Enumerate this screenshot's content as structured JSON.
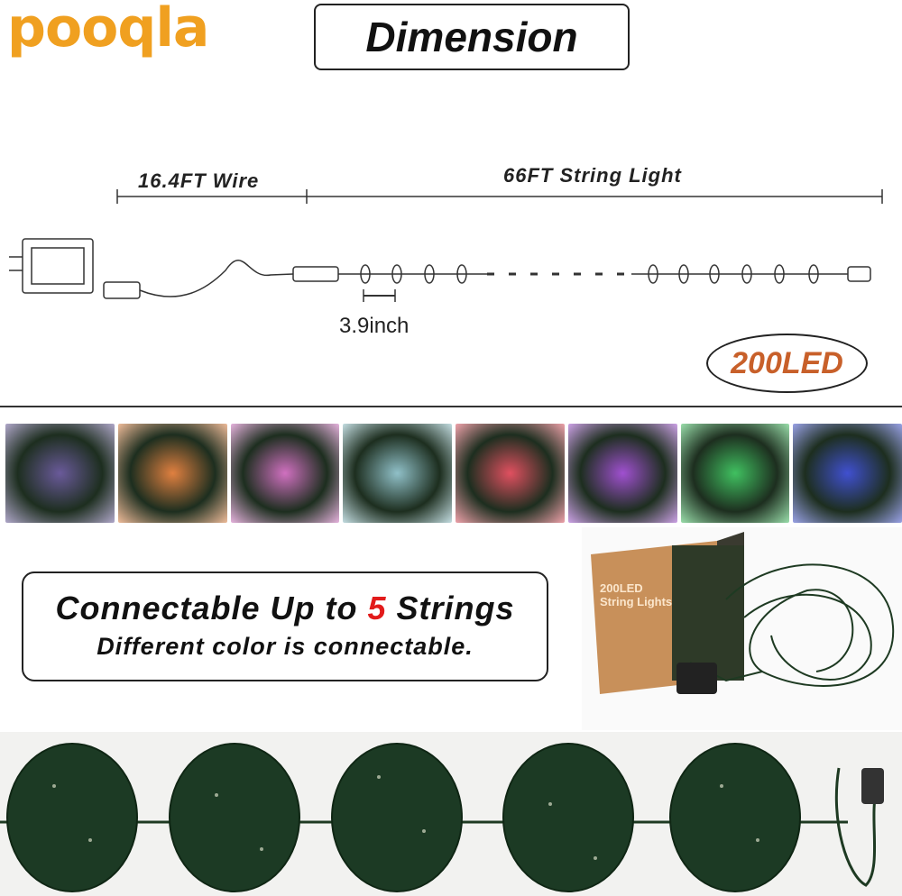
{
  "logo": {
    "text": "pooqla",
    "color": "#f0a020"
  },
  "title": "Dimension",
  "dimension": {
    "wire_label": "16.4FT Wire",
    "string_label": "66FT String Light",
    "spacing_label": "3.9inch",
    "led_count": "200LED"
  },
  "color_modes": [
    {
      "name": "multicolor",
      "color": "#6a5a9a"
    },
    {
      "name": "orange",
      "color": "#e08040"
    },
    {
      "name": "pink",
      "color": "#d070c0"
    },
    {
      "name": "cool-white",
      "color": "#90c0c8"
    },
    {
      "name": "red",
      "color": "#e05060"
    },
    {
      "name": "purple",
      "color": "#a050d0"
    },
    {
      "name": "green",
      "color": "#40c060"
    },
    {
      "name": "blue",
      "color": "#4050d0"
    }
  ],
  "connect": {
    "line1_pre": "Connectable Up to ",
    "line1_num": "5",
    "line1_post": " Strings",
    "line2": "Different color is connectable."
  },
  "product_box": {
    "line1": "200LED",
    "line2": "String Lights"
  },
  "colors": {
    "accent": "#f0a020",
    "highlight": "#e21b1b",
    "led_badge": "#c8602a"
  }
}
